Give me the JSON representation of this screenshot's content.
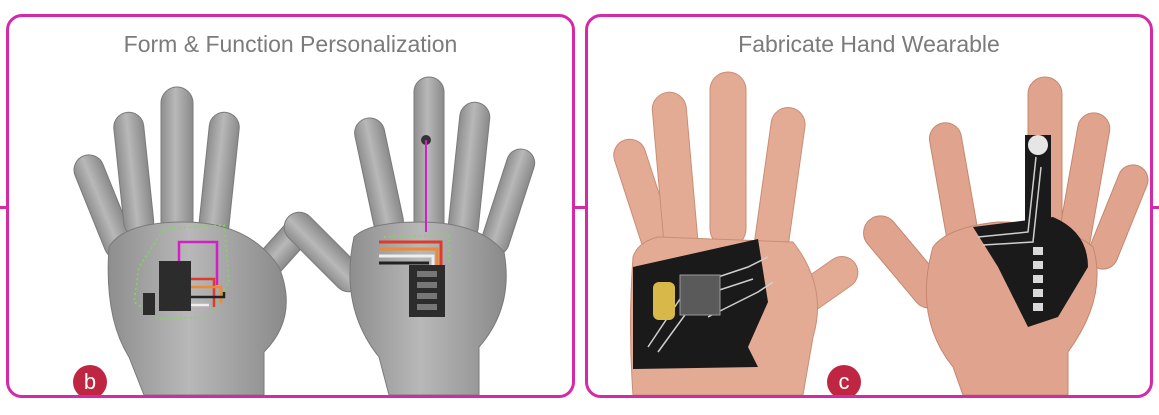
{
  "panels": [
    {
      "title": "Form & Function Personalization",
      "badge": "b"
    },
    {
      "title": "Fabricate Hand Wearable",
      "badge": "c"
    }
  ],
  "colors": {
    "border": "#d42aa8",
    "badge": "#bf2641",
    "title": "#7b7b7b",
    "hand_model": "#a9a9a9",
    "skin": "#e3ab94",
    "patch": "#1a1a1a"
  }
}
